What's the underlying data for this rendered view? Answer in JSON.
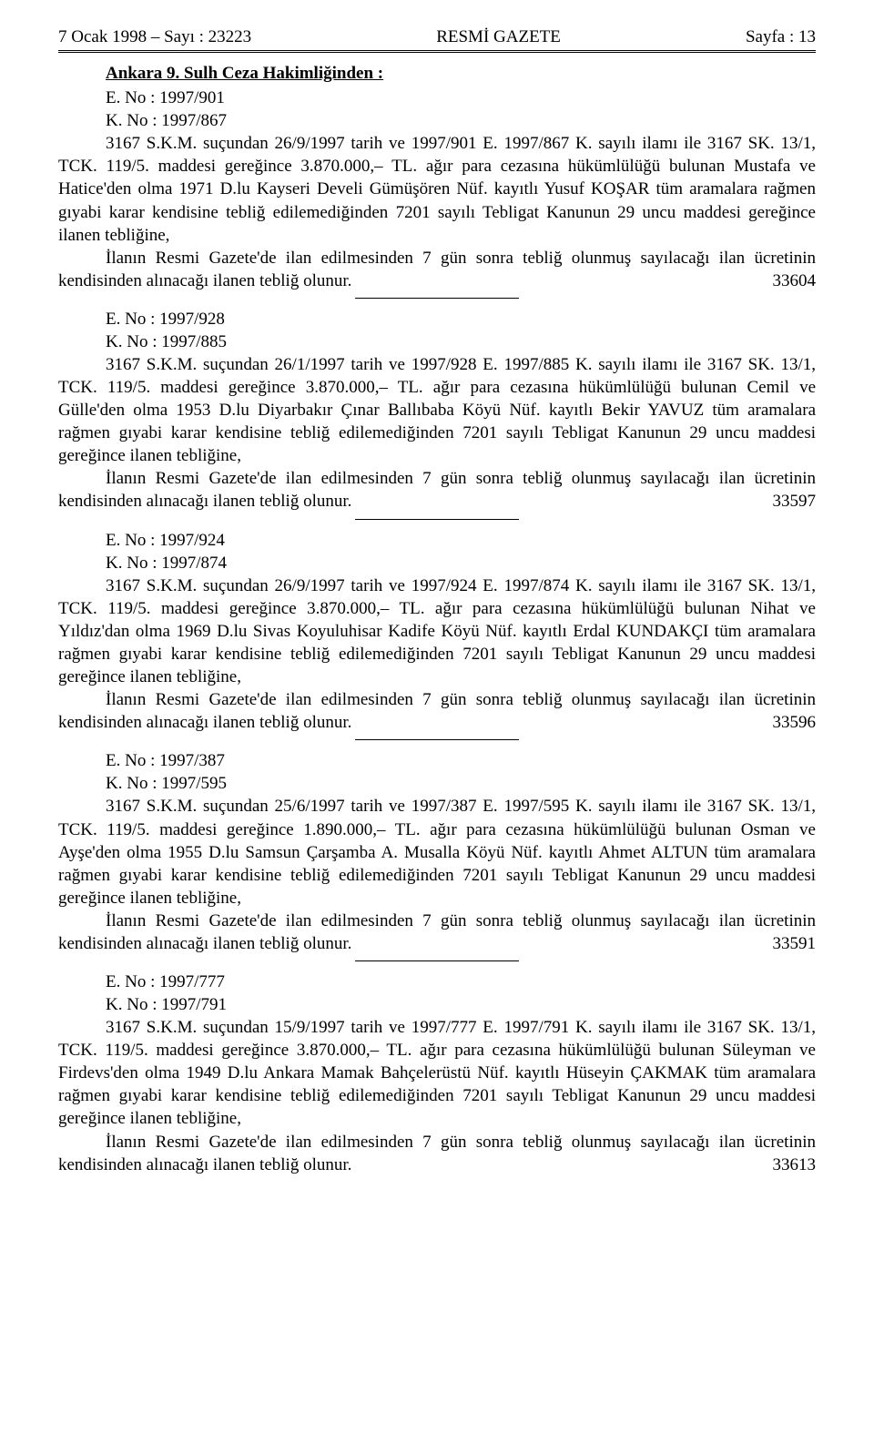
{
  "header": {
    "left": "7 Ocak 1998 – Sayı : 23223",
    "center": "RESMİ GAZETE",
    "right": "Sayfa : 13"
  },
  "court_heading": "Ankara 9. Sulh Ceza Hakimliğinden :",
  "announcements": [
    {
      "e_no": "E. No : 1997/901",
      "k_no": "K. No : 1997/867",
      "para": "3167 S.K.M. suçundan 26/9/1997 tarih ve 1997/901 E. 1997/867 K. sayılı ilamı ile 3167 SK. 13/1, TCK. 119/5. maddesi gereğince 3.870.000,– TL. ağır para cezasına hükümlülüğü bulunan Mustafa ve Hatice'den olma 1971 D.lu Kayseri Develi Gümüşören Nüf. kayıtlı Yusuf KOŞAR tüm aramalara rağmen gıyabi karar kendisine tebliğ edilemediğinden 7201 sayılı Tebligat Kanunun 29 uncu maddesi gereğince ilanen tebliğine,",
      "para2": "İlanın Resmi Gazete'de ilan edilmesinden 7 gün sonra tebliğ olunmuş sayılacağı ilan ücretinin kendisinden alınacağı ilanen tebliğ olunur.",
      "ref": "33604"
    },
    {
      "e_no": "E. No : 1997/928",
      "k_no": "K. No : 1997/885",
      "para": "3167 S.K.M. suçundan 26/1/1997 tarih ve 1997/928 E. 1997/885 K. sayılı ilamı ile 3167 SK. 13/1, TCK. 119/5. maddesi gereğince 3.870.000,– TL. ağır para cezasına hükümlülüğü bulunan Cemil ve Gülle'den olma 1953 D.lu Diyarbakır Çınar Ballıbaba Köyü Nüf. kayıtlı Bekir YAVUZ tüm aramalara rağmen gıyabi karar kendisine tebliğ edilemediğinden 7201 sayılı Tebligat Kanunun 29 uncu maddesi gereğince ilanen tebliğine,",
      "para2": "İlanın Resmi Gazete'de ilan edilmesinden 7 gün sonra tebliğ olunmuş sayılacağı ilan ücretinin kendisinden alınacağı ilanen tebliğ olunur.",
      "ref": "33597"
    },
    {
      "e_no": "E. No : 1997/924",
      "k_no": "K. No : 1997/874",
      "para": "3167 S.K.M. suçundan 26/9/1997 tarih ve 1997/924 E. 1997/874 K. sayılı ilamı ile 3167 SK. 13/1, TCK. 119/5. maddesi gereğince 3.870.000,– TL. ağır para cezasına hükümlülüğü bulunan Nihat ve Yıldız'dan olma 1969 D.lu Sivas Koyuluhisar Kadife Köyü Nüf. kayıtlı Erdal KUNDAKÇI tüm aramalara rağmen gıyabi karar kendisine tebliğ edilemediğinden 7201 sayılı Tebligat Kanunun 29 uncu maddesi gereğince ilanen tebliğine,",
      "para2": "İlanın Resmi Gazete'de ilan edilmesinden 7 gün sonra tebliğ olunmuş sayılacağı ilan ücretinin kendisinden alınacağı ilanen tebliğ olunur.",
      "ref": "33596"
    },
    {
      "e_no": "E. No : 1997/387",
      "k_no": "K. No : 1997/595",
      "para": "3167 S.K.M. suçundan 25/6/1997 tarih ve 1997/387 E. 1997/595 K. sayılı ilamı ile 3167 SK. 13/1, TCK. 119/5. maddesi gereğince 1.890.000,– TL. ağır para cezasına hükümlülüğü bulunan Osman ve Ayşe'den olma 1955 D.lu Samsun Çarşamba A. Musalla Köyü Nüf. kayıtlı Ahmet ALTUN tüm aramalara rağmen gıyabi karar kendisine tebliğ edilemediğinden 7201 sayılı Tebligat Kanunun 29 uncu maddesi gereğince ilanen tebliğine,",
      "para2": "İlanın Resmi Gazete'de ilan edilmesinden 7 gün sonra tebliğ olunmuş sayılacağı ilan ücretinin kendisinden alınacağı ilanen tebliğ olunur.",
      "ref": "33591"
    },
    {
      "e_no": "E. No : 1997/777",
      "k_no": "K. No : 1997/791",
      "para": "3167 S.K.M. suçundan 15/9/1997 tarih ve 1997/777 E. 1997/791 K. sayılı ilamı ile 3167 SK. 13/1, TCK. 119/5. maddesi gereğince 3.870.000,– TL. ağır para cezasına hükümlülüğü bulunan Süleyman ve Firdevs'den olma 1949 D.lu Ankara Mamak Bahçelerüstü Nüf. kayıtlı Hüseyin ÇAKMAK tüm aramalara rağmen gıyabi karar kendisine tebliğ edilemediğinden 7201 sayılı Tebligat Kanunun 29 uncu maddesi gereğince ilanen tebliğine,",
      "para2": "İlanın Resmi Gazete'de ilan edilmesinden 7 gün sonra tebliğ olunmuş sayılacağı ilan ücretinin kendisinden alınacağı ilanen tebliğ olunur.",
      "ref": "33613"
    }
  ]
}
